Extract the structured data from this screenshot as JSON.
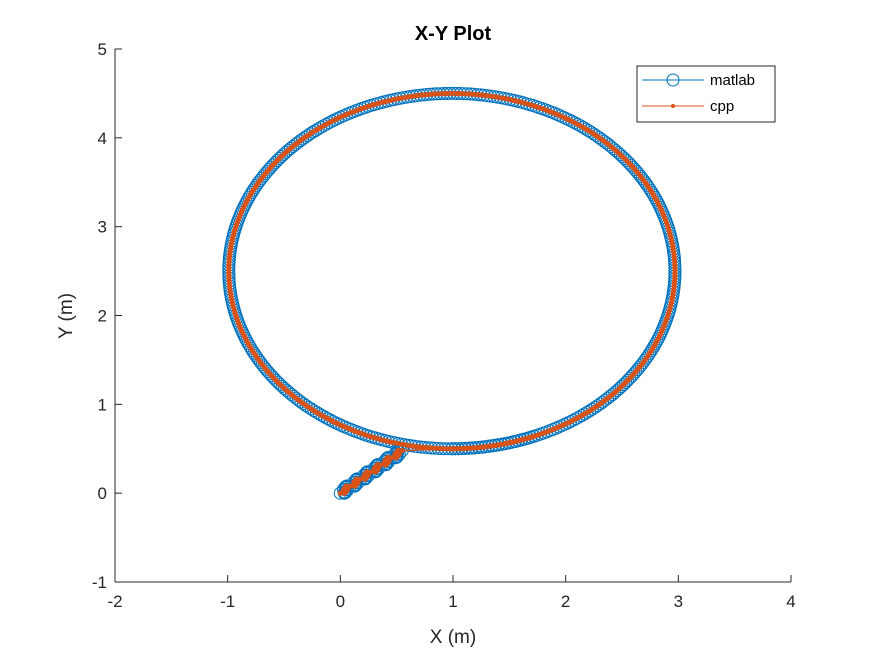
{
  "chart_data": {
    "type": "line",
    "title": "X-Y Plot",
    "xlabel": "X (m)",
    "ylabel": "Y (m)",
    "xlim": [
      -2,
      4
    ],
    "ylim": [
      -1,
      5
    ],
    "xticks": [
      "-2",
      "-1",
      "0",
      "1",
      "2",
      "3",
      "4"
    ],
    "yticks": [
      "-1",
      "0",
      "1",
      "2",
      "3",
      "4",
      "5"
    ],
    "grid": false,
    "legend_position": "top-right",
    "trajectory": {
      "start_point": [
        0,
        0
      ],
      "initial_segment_end": [
        0.55,
        0.48
      ],
      "loop_center": [
        0.99,
        2.5
      ],
      "loop_radius_x": 1.98,
      "loop_radius_y": 2.0
    },
    "series": [
      {
        "name": "matlab",
        "marker": "circle",
        "color": "#0072BD"
      },
      {
        "name": "cpp",
        "marker": "dot",
        "color": "#D95319"
      }
    ]
  }
}
